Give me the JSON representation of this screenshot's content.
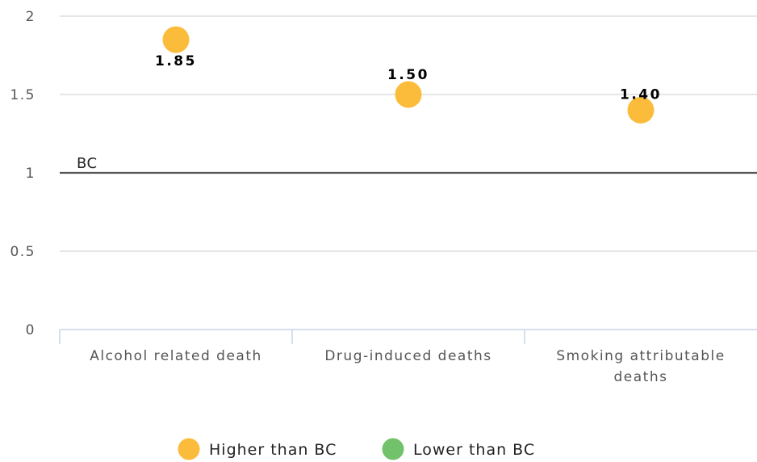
{
  "chart_data": {
    "type": "scatter",
    "categories": [
      "Alcohol related death",
      "Drug-induced deaths",
      "Smoking attributable deaths"
    ],
    "category_lines": [
      [
        "Alcohol related death"
      ],
      [
        "Drug-induced deaths"
      ],
      [
        "Smoking attributable",
        "deaths"
      ]
    ],
    "values": [
      1.85,
      1.5,
      1.4
    ],
    "value_labels": [
      "1.85",
      "1.50",
      "1.40"
    ],
    "series_status": [
      "higher",
      "higher",
      "higher"
    ],
    "y_ticks": [
      0,
      0.5,
      1,
      1.5,
      2
    ],
    "y_tick_labels": [
      "0",
      "0.5",
      "1",
      "1.5",
      "2"
    ],
    "ylim": [
      0,
      2
    ],
    "grid": true,
    "reference_line": {
      "value": 1,
      "label": "BC"
    },
    "legend": {
      "position": "bottom",
      "items": [
        {
          "label": "Higher than BC",
          "color": "#FBBC3C"
        },
        {
          "label": "Lower than BC",
          "color": "#72C26C"
        }
      ]
    },
    "colors": {
      "higher": "#FBBC3C",
      "lower": "#72C26C",
      "grid": "#D8D8D8",
      "axis": "#C8D6E6",
      "reference": "#555555"
    }
  }
}
